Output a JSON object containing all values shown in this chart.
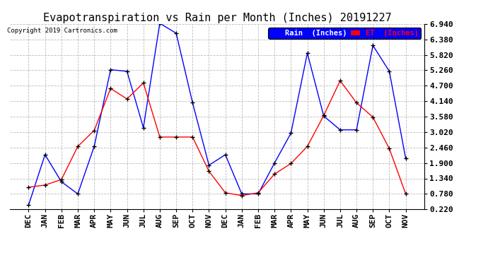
{
  "title": "Evapotranspiration vs Rain per Month (Inches) 20191227",
  "copyright": "Copyright 2019 Cartronics.com",
  "months": [
    "DEC",
    "JAN",
    "FEB",
    "MAR",
    "APR",
    "MAY",
    "JUN",
    "JUL",
    "AUG",
    "SEP",
    "OCT",
    "NOV",
    "DEC",
    "JAN",
    "FEB",
    "MAR",
    "APR",
    "MAY",
    "JUN",
    "JUL",
    "AUG",
    "SEP",
    "OCT",
    "NOV"
  ],
  "rain": [
    0.38,
    2.2,
    1.22,
    0.78,
    2.5,
    5.28,
    5.22,
    3.18,
    6.96,
    6.6,
    4.08,
    1.82,
    2.2,
    0.78,
    0.78,
    1.9,
    2.98,
    5.88,
    3.6,
    3.1,
    3.1,
    6.16,
    5.22,
    2.06
  ],
  "et": [
    1.02,
    1.1,
    1.3,
    2.5,
    3.08,
    4.6,
    4.22,
    4.8,
    2.84,
    2.84,
    2.84,
    1.6,
    0.82,
    0.72,
    0.82,
    1.5,
    1.88,
    2.5,
    3.62,
    4.88,
    4.08,
    3.56,
    2.42,
    0.78
  ],
  "ylim_min": 0.22,
  "ylim_max": 6.94,
  "yticks": [
    0.22,
    0.78,
    1.34,
    1.9,
    2.46,
    3.02,
    3.58,
    4.14,
    4.7,
    5.26,
    5.82,
    6.38,
    6.94
  ],
  "rain_color": "blue",
  "et_color": "red",
  "background_color": "#ffffff",
  "grid_color": "#bbbbbb",
  "title_fontsize": 11,
  "axis_fontsize": 8,
  "legend_rain_label": "Rain  (Inches)",
  "legend_et_label": "ET  (Inches)"
}
